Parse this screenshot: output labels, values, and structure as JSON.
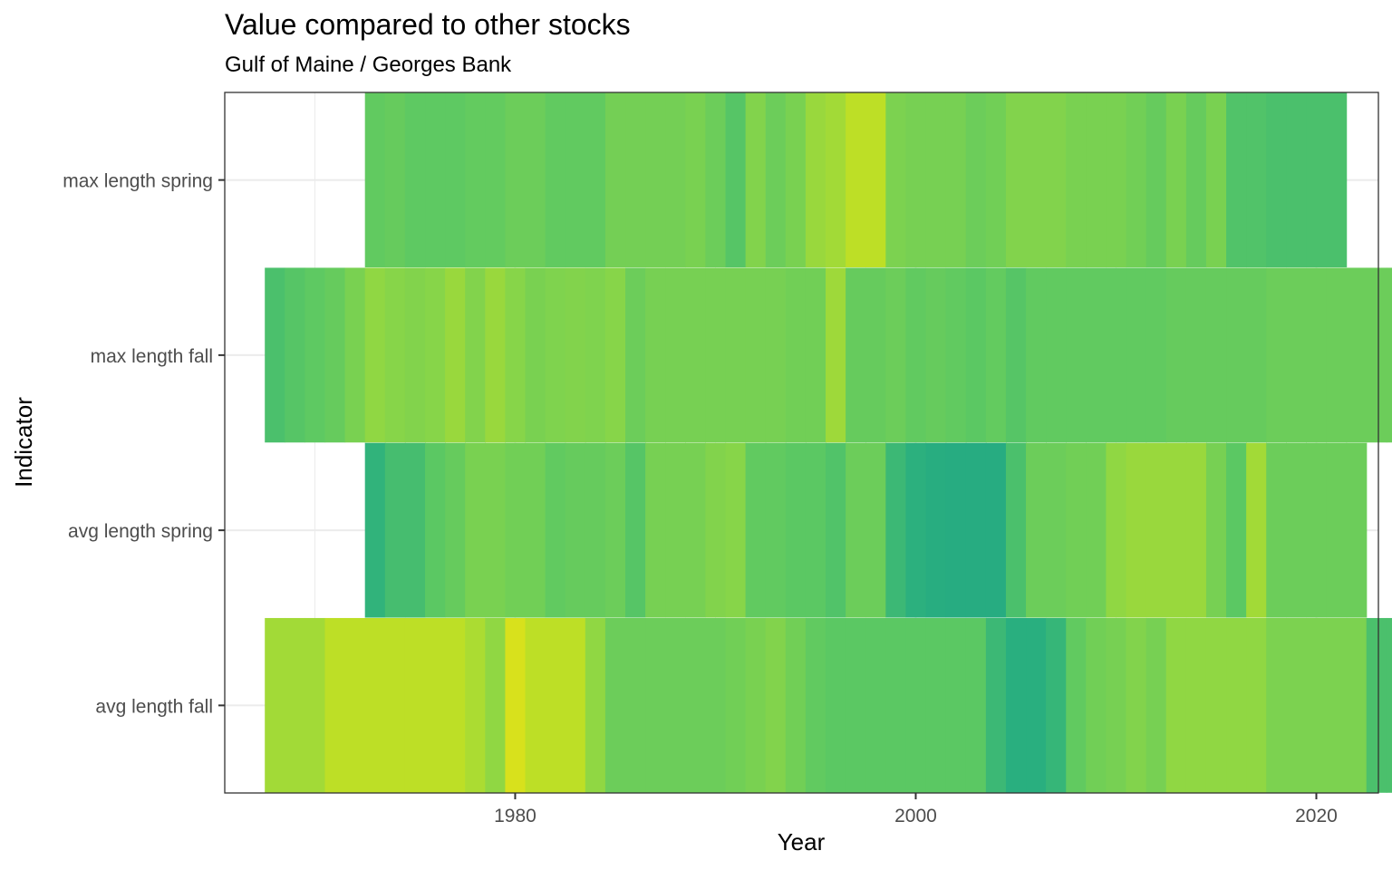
{
  "chart_data": {
    "type": "heatmap",
    "title": "Value compared to other stocks",
    "subtitle": "Gulf of Maine / Georges Bank",
    "xlabel": "Year",
    "ylabel": "Indicator",
    "xlim": [
      1965.5,
      2023.1
    ],
    "x_ticks": [
      1980,
      2000,
      2020
    ],
    "y_categories": [
      "avg length fall",
      "avg length spring",
      "max length fall",
      "max length spring"
    ],
    "grid": true,
    "legend": "none",
    "series": [
      {
        "name": "max length spring",
        "start_year": 1973,
        "values": [
          0.46,
          0.48,
          0.45,
          0.45,
          0.45,
          0.47,
          0.47,
          0.5,
          0.5,
          0.46,
          0.46,
          0.46,
          0.53,
          0.53,
          0.53,
          0.53,
          0.55,
          0.5,
          0.42,
          0.58,
          0.5,
          0.55,
          0.64,
          0.66,
          0.72,
          0.72,
          0.56,
          0.54,
          0.54,
          0.54,
          0.5,
          0.52,
          0.58,
          0.58,
          0.58,
          0.55,
          0.55,
          0.55,
          0.52,
          0.48,
          0.55,
          0.48,
          0.55,
          0.4,
          0.4,
          0.38,
          0.38,
          0.38,
          0.38
        ]
      },
      {
        "name": "max length fall",
        "start_year": 1968,
        "values": [
          0.38,
          0.42,
          0.45,
          0.48,
          0.55,
          0.62,
          0.6,
          0.58,
          0.6,
          0.64,
          0.58,
          0.64,
          0.6,
          0.55,
          0.57,
          0.58,
          0.57,
          0.6,
          0.5,
          0.54,
          0.54,
          0.54,
          0.54,
          0.54,
          0.54,
          0.54,
          0.52,
          0.52,
          0.65,
          0.48,
          0.48,
          0.5,
          0.46,
          0.48,
          0.46,
          0.44,
          0.47,
          0.42,
          0.46,
          0.46,
          0.46,
          0.46,
          0.46,
          0.46,
          0.46,
          0.48,
          0.48,
          0.48,
          0.48,
          0.48,
          0.5,
          0.5,
          0.5,
          0.5,
          0.5,
          0.5,
          0.5,
          0.5,
          0.5,
          0.5,
          0.5,
          0.5
        ]
      },
      {
        "name": "avg length spring",
        "start_year": 1973,
        "values": [
          0.28,
          0.36,
          0.36,
          0.44,
          0.48,
          0.55,
          0.55,
          0.52,
          0.52,
          0.46,
          0.48,
          0.48,
          0.5,
          0.42,
          0.54,
          0.54,
          0.54,
          0.58,
          0.6,
          0.46,
          0.46,
          0.44,
          0.44,
          0.4,
          0.5,
          0.5,
          0.32,
          0.26,
          0.22,
          0.21,
          0.21,
          0.2,
          0.38,
          0.5,
          0.5,
          0.52,
          0.52,
          0.62,
          0.64,
          0.64,
          0.64,
          0.64,
          0.54,
          0.44,
          0.66,
          0.5,
          0.5,
          0.5,
          0.5,
          0.5
        ]
      },
      {
        "name": "avg length fall",
        "start_year": 1968,
        "values": [
          0.66,
          0.66,
          0.66,
          0.72,
          0.72,
          0.72,
          0.72,
          0.72,
          0.72,
          0.72,
          0.68,
          0.62,
          0.78,
          0.72,
          0.72,
          0.72,
          0.62,
          0.5,
          0.5,
          0.5,
          0.5,
          0.5,
          0.5,
          0.52,
          0.55,
          0.58,
          0.52,
          0.46,
          0.44,
          0.44,
          0.44,
          0.44,
          0.44,
          0.44,
          0.44,
          0.44,
          0.32,
          0.25,
          0.25,
          0.3,
          0.46,
          0.52,
          0.54,
          0.58,
          0.54,
          0.62,
          0.62,
          0.62,
          0.62,
          0.62,
          0.56,
          0.56,
          0.56,
          0.56,
          0.56,
          0.38,
          0.38,
          0.38,
          0.36,
          0.36,
          0.36,
          0.5,
          0.5
        ]
      }
    ]
  }
}
